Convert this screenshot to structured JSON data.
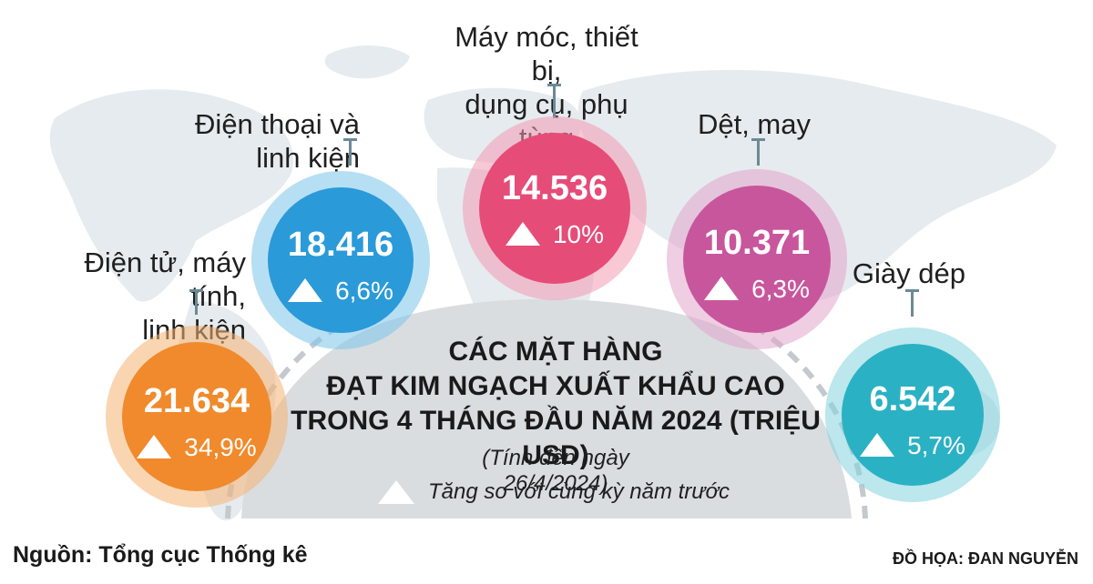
{
  "chart_data": {
    "type": "bubble-infographic",
    "title_lines": [
      "CÁC MẶT HÀNG",
      "ĐẠT KIM NGẠCH XUẤT KHẨU CAO",
      "TRONG 4 THÁNG ĐẦU NĂM 2024 (TRIỆU USD)"
    ],
    "subtitle": "(Tính đến ngày 26/4/2024)",
    "legend": "Tăng so với cùng kỳ năm trước",
    "items": [
      {
        "category": "Điện tử, máy tính,\nlinh kiện",
        "value": "21.634",
        "growth": "34,9%",
        "color": "#f08a2c"
      },
      {
        "category": "Điện thoại và\nlinh kiện",
        "value": "18.416",
        "growth": "6,6%",
        "color": "#2a9ad9"
      },
      {
        "category": "Máy móc, thiết bị,\ndụng cụ, phụ tùng",
        "value": "14.536",
        "growth": "10%",
        "color": "#e64c78"
      },
      {
        "category": "Dệt, may",
        "value": "10.371",
        "growth": "6,3%",
        "color": "#c8569d"
      },
      {
        "category": "Giày dép",
        "value": "6.542",
        "growth": "5,7%",
        "color": "#2bb1c4"
      }
    ]
  },
  "footer": {
    "source": "Nguồn: Tổng cục Thống kê",
    "credit": "ĐỒ HỌA: ĐAN NGUYỄN"
  }
}
